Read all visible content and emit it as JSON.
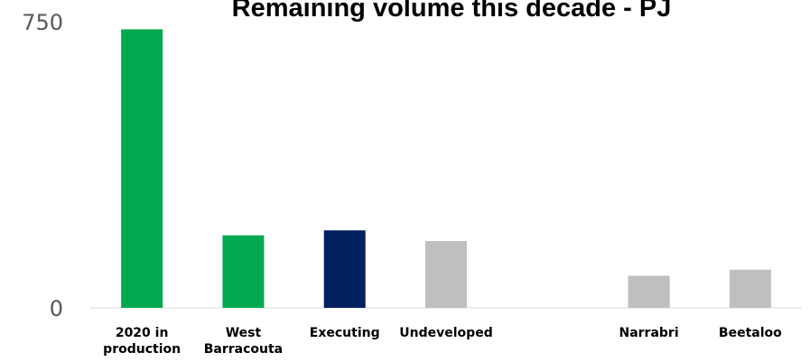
{
  "chart_data": {
    "type": "bar",
    "title": "Remaining volume this decade - PJ",
    "xlabel": "",
    "ylabel": "",
    "ylim": [
      0,
      750
    ],
    "y_tick_labels": [
      "750",
      "0"
    ],
    "categories": [
      [
        "2020 in",
        "production"
      ],
      [
        "West",
        "Barracouta"
      ],
      [
        "Executing"
      ],
      [
        "Undeveloped"
      ],
      [
        ""
      ],
      [
        "Narrabri"
      ],
      [
        "Beetaloo"
      ]
    ],
    "values": [
      730,
      190,
      203,
      175,
      null,
      84,
      100
    ],
    "bar_colors": [
      "#00a94f",
      "#00a94f",
      "#002060",
      "#bfbfbf",
      null,
      "#bfbfbf",
      "#bfbfbf"
    ],
    "grid": false,
    "legend": "none"
  }
}
